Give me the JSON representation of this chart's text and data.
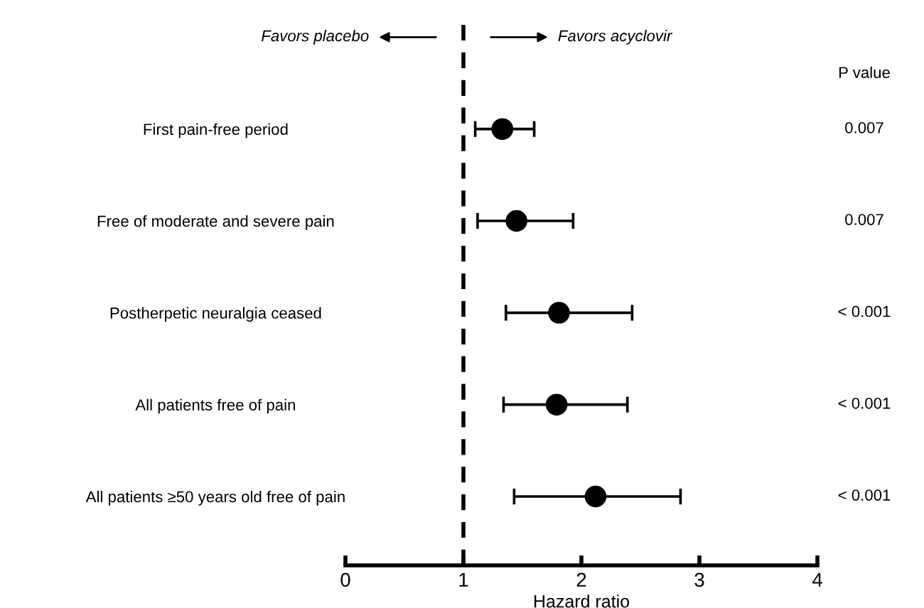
{
  "chart_data": {
    "type": "scatter",
    "orientation": "horizontal",
    "xlabel": "Hazard ratio",
    "categories": [
      "First pain-free period",
      "Free of moderate and severe pain",
      "Postherpetic neuralgia ceased",
      "All patients free of pain",
      "All patients ≥50 years old free of pain"
    ],
    "color": "#000000",
    "values": [
      1.33,
      1.45,
      1.81,
      1.79,
      2.12
    ],
    "errors": [
      [
        1.1,
        1.6
      ],
      [
        1.12,
        1.93
      ],
      [
        1.36,
        2.43
      ],
      [
        1.34,
        2.39
      ],
      [
        1.43,
        2.84
      ]
    ],
    "marker": "circle",
    "xlim": [
      0,
      4
    ],
    "xticks": [
      0,
      1,
      2,
      3,
      4
    ],
    "grid": false,
    "legend": false,
    "ref_lines": [
      {
        "axis": "x",
        "value": 1,
        "line_style": "dashed",
        "color": "#000000"
      }
    ],
    "annotations": [
      "Favors placebo",
      "Favors acyclovir",
      "P value",
      "0.007",
      "0.007",
      "< 0.001",
      "< 0.001",
      "< 0.001"
    ]
  }
}
